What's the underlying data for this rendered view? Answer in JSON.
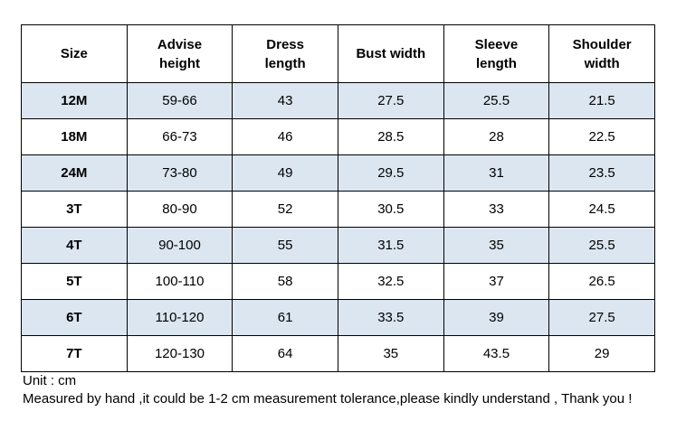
{
  "table": {
    "header": [
      "Size",
      "Advise height",
      "Dress length",
      "Bust width",
      "Sleeve length",
      "Shoulder width"
    ],
    "rows": [
      [
        "12M",
        "59-66",
        43,
        27.5,
        25.5,
        21.5
      ],
      [
        "18M",
        "66-73",
        46,
        28.5,
        28,
        22.5
      ],
      [
        "24M",
        "73-80",
        49,
        29.5,
        31,
        23.5
      ],
      [
        "3T",
        "80-90",
        52,
        30.5,
        33,
        24.5
      ],
      [
        "4T",
        "90-100",
        55,
        31.5,
        35,
        25.5
      ],
      [
        "5T",
        "100-110",
        58,
        32.5,
        37,
        26.5
      ],
      [
        "6T",
        "110-120",
        61,
        33.5,
        39,
        27.5
      ],
      [
        "7T",
        "120-130",
        64,
        35,
        43.5,
        29
      ]
    ]
  },
  "notes": [
    "Unit : cm",
    "Measured by hand ,it could be 1-2 cm measurement tolerance,please kindly understand , Thank you !"
  ]
}
